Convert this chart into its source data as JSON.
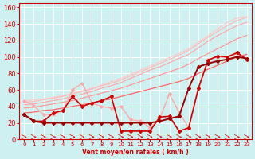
{
  "title": "",
  "xlabel": "Vent moyen/en rafales ( km/h )",
  "xlabel_color": "#cc0000",
  "bg_color": "#cef0f0",
  "grid_color": "#ffffff",
  "xlim": [
    -0.5,
    23.5
  ],
  "ylim": [
    0,
    165
  ],
  "yticks": [
    0,
    20,
    40,
    60,
    80,
    100,
    120,
    140,
    160
  ],
  "xticks": [
    0,
    1,
    2,
    3,
    4,
    5,
    6,
    7,
    8,
    9,
    10,
    11,
    12,
    13,
    14,
    15,
    16,
    17,
    18,
    19,
    20,
    21,
    22,
    23
  ],
  "series": [
    {
      "x": [
        0,
        1,
        2,
        3,
        4,
        5,
        6,
        7,
        8,
        9,
        10,
        11,
        12,
        13,
        14,
        15,
        16,
        17,
        18,
        19,
        20,
        21,
        22,
        23
      ],
      "y": [
        47,
        41,
        30,
        30,
        35,
        60,
        68,
        44,
        40,
        38,
        40,
        24,
        22,
        14,
        25,
        55,
        33,
        14,
        62,
        97,
        100,
        99,
        104,
        98
      ],
      "color": "#ffaaaa",
      "lw": 1.0,
      "marker": "D",
      "ms": 1.8,
      "zorder": 4
    },
    {
      "x": [
        0,
        1,
        2,
        3,
        4,
        5,
        6,
        7,
        8,
        9,
        10,
        11,
        12,
        13,
        14,
        15,
        16,
        17,
        18,
        19,
        20,
        21,
        22,
        23
      ],
      "y": [
        47,
        48,
        49,
        51,
        53,
        56,
        59,
        62,
        66,
        70,
        74,
        79,
        84,
        89,
        94,
        99,
        104,
        110,
        118,
        126,
        134,
        142,
        147,
        149
      ],
      "color": "#ffcccc",
      "lw": 0.9,
      "marker": null,
      "ms": 0,
      "zorder": 2
    },
    {
      "x": [
        0,
        1,
        2,
        3,
        4,
        5,
        6,
        7,
        8,
        9,
        10,
        11,
        12,
        13,
        14,
        15,
        16,
        17,
        18,
        19,
        20,
        21,
        22,
        23
      ],
      "y": [
        45,
        46,
        48,
        50,
        52,
        55,
        58,
        61,
        65,
        68,
        72,
        77,
        82,
        87,
        92,
        97,
        102,
        108,
        116,
        124,
        131,
        138,
        144,
        148
      ],
      "color": "#ffbbbb",
      "lw": 0.9,
      "marker": null,
      "ms": 0,
      "zorder": 2
    },
    {
      "x": [
        0,
        1,
        2,
        3,
        4,
        5,
        6,
        7,
        8,
        9,
        10,
        11,
        12,
        13,
        14,
        15,
        16,
        17,
        18,
        19,
        20,
        21,
        22,
        23
      ],
      "y": [
        42,
        43,
        45,
        47,
        49,
        52,
        55,
        58,
        62,
        65,
        69,
        74,
        79,
        84,
        88,
        93,
        98,
        103,
        111,
        119,
        126,
        132,
        138,
        142
      ],
      "color": "#ffaaaa",
      "lw": 0.9,
      "marker": null,
      "ms": 0,
      "zorder": 2
    },
    {
      "x": [
        0,
        1,
        2,
        3,
        4,
        5,
        6,
        7,
        8,
        9,
        10,
        11,
        12,
        13,
        14,
        15,
        16,
        17,
        18,
        19,
        20,
        21,
        22,
        23
      ],
      "y": [
        38,
        39,
        41,
        43,
        45,
        47,
        50,
        53,
        56,
        59,
        62,
        66,
        70,
        74,
        78,
        82,
        86,
        91,
        98,
        104,
        110,
        116,
        122,
        126
      ],
      "color": "#ff9999",
      "lw": 0.9,
      "marker": null,
      "ms": 0,
      "zorder": 2
    },
    {
      "x": [
        0,
        1,
        2,
        3,
        4,
        5,
        6,
        7,
        8,
        9,
        10,
        11,
        12,
        13,
        14,
        15,
        16,
        17,
        18,
        19,
        20,
        21,
        22,
        23
      ],
      "y": [
        32,
        33,
        35,
        36,
        38,
        40,
        42,
        44,
        47,
        49,
        52,
        55,
        58,
        61,
        64,
        67,
        70,
        74,
        80,
        85,
        90,
        95,
        100,
        103
      ],
      "color": "#ff6666",
      "lw": 0.9,
      "marker": null,
      "ms": 0,
      "zorder": 2
    },
    {
      "x": [
        0,
        1,
        2,
        3,
        4,
        5,
        6,
        7,
        8,
        9,
        10,
        11,
        12,
        13,
        14,
        15,
        16,
        17,
        18,
        19,
        20,
        21,
        22,
        23
      ],
      "y": [
        30,
        22,
        22,
        32,
        35,
        52,
        40,
        44,
        47,
        52,
        10,
        10,
        10,
        10,
        27,
        28,
        10,
        14,
        62,
        96,
        101,
        100,
        105,
        97
      ],
      "color": "#cc0000",
      "lw": 1.2,
      "marker": "D",
      "ms": 2.0,
      "zorder": 5
    },
    {
      "x": [
        0,
        1,
        2,
        3,
        4,
        5,
        6,
        7,
        8,
        9,
        10,
        11,
        12,
        13,
        14,
        15,
        16,
        17,
        18,
        19,
        20,
        21,
        22,
        23
      ],
      "y": [
        30,
        22,
        20,
        20,
        20,
        20,
        20,
        20,
        20,
        20,
        20,
        20,
        20,
        20,
        22,
        25,
        28,
        62,
        88,
        92,
        95,
        97,
        100,
        98
      ],
      "color": "#990000",
      "lw": 1.4,
      "marker": "D",
      "ms": 2.0,
      "zorder": 5
    }
  ]
}
